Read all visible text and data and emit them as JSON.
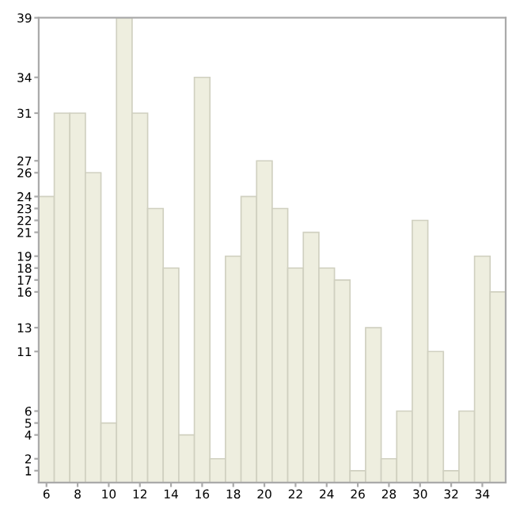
{
  "chart_data": {
    "type": "bar",
    "x": [
      6,
      7,
      8,
      9,
      10,
      11,
      12,
      13,
      14,
      15,
      16,
      17,
      18,
      19,
      20,
      21,
      22,
      23,
      24,
      25,
      26,
      27,
      28,
      29,
      30,
      31,
      32,
      33,
      34,
      35
    ],
    "values": [
      24,
      31,
      31,
      26,
      5,
      39,
      31,
      23,
      18,
      4,
      34,
      2,
      19,
      24,
      27,
      23,
      18,
      21,
      18,
      17,
      1,
      13,
      2,
      6,
      22,
      11,
      1,
      6,
      19,
      16
    ],
    "color": "#eeeedf",
    "xlim": [
      5.5,
      35.5
    ],
    "xticks": [
      6,
      8,
      10,
      12,
      14,
      16,
      18,
      20,
      22,
      24,
      26,
      28,
      30,
      32,
      34
    ],
    "ylim": [
      0,
      39
    ],
    "yticks": [
      1,
      2,
      4,
      5,
      6,
      11,
      13,
      16,
      17,
      18,
      19,
      21,
      22,
      23,
      24,
      26,
      27,
      31,
      34,
      39
    ],
    "grid": false
  }
}
